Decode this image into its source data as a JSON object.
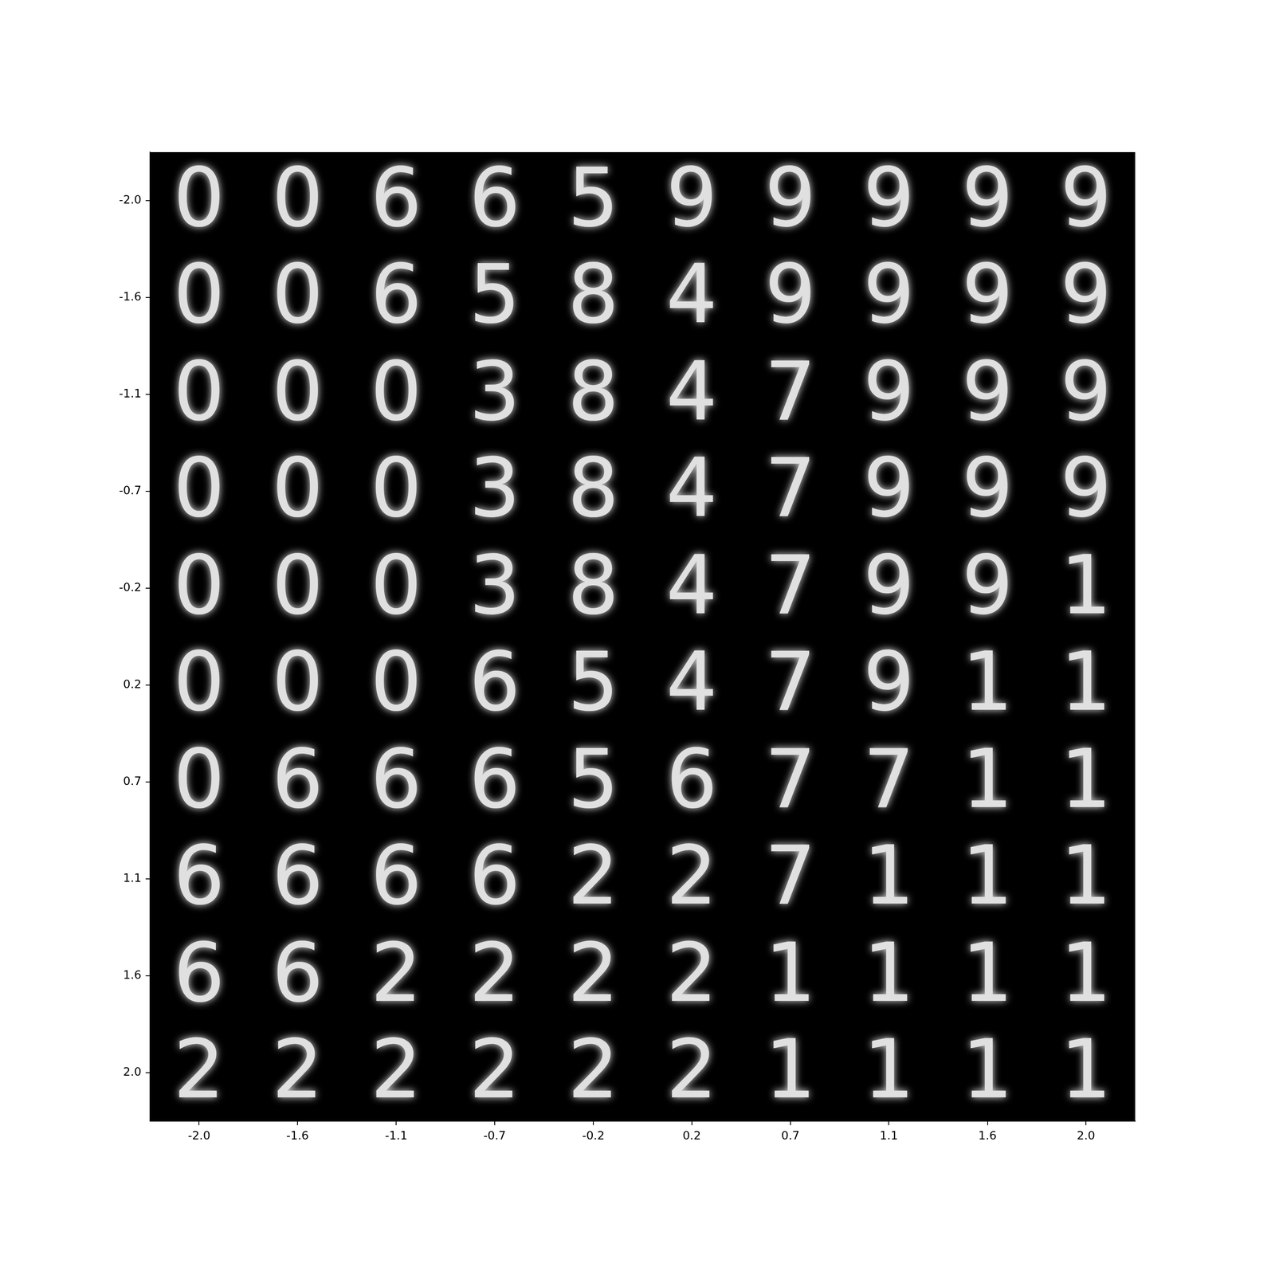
{
  "chart_data": {
    "type": "image_grid",
    "xlim": [
      -2.222,
      2.222
    ],
    "ylim": [
      2.222,
      -2.222
    ],
    "xticks": [
      {
        "value": -2,
        "label": "-2.0"
      },
      {
        "value": -1.556,
        "label": "-1.6"
      },
      {
        "value": -1.111,
        "label": "-1.1"
      },
      {
        "value": -0.667,
        "label": "-0.7"
      },
      {
        "value": -0.222,
        "label": "-0.2"
      },
      {
        "value": 0.222,
        "label": "0.2"
      },
      {
        "value": 0.667,
        "label": "0.7"
      },
      {
        "value": 1.111,
        "label": "1.1"
      },
      {
        "value": 1.556,
        "label": "1.6"
      },
      {
        "value": 2,
        "label": "2.0"
      }
    ],
    "yticks": [
      {
        "value": -2,
        "label": "-2.0"
      },
      {
        "value": -1.556,
        "label": "-1.6"
      },
      {
        "value": -1.111,
        "label": "-1.1"
      },
      {
        "value": -0.667,
        "label": "-0.7"
      },
      {
        "value": -0.222,
        "label": "-0.2"
      },
      {
        "value": 0.222,
        "label": "0.2"
      },
      {
        "value": 0.667,
        "label": "0.7"
      },
      {
        "value": 1.111,
        "label": "1.1"
      },
      {
        "value": 1.556,
        "label": "1.6"
      },
      {
        "value": 2,
        "label": "2.0"
      }
    ],
    "grid": false,
    "color": "#e0e0e0",
    "cells": [
      [
        "0",
        "0",
        "6",
        "6",
        "5",
        "9",
        "9",
        "9",
        "9",
        "9"
      ],
      [
        "0",
        "0",
        "6",
        "5",
        "8",
        "4",
        "9",
        "9",
        "9",
        "9"
      ],
      [
        "0",
        "0",
        "0",
        "3",
        "8",
        "4",
        "7",
        "9",
        "9",
        "9"
      ],
      [
        "0",
        "0",
        "0",
        "3",
        "8",
        "4",
        "7",
        "9",
        "9",
        "9"
      ],
      [
        "0",
        "0",
        "0",
        "3",
        "8",
        "4",
        "7",
        "9",
        "9",
        "1"
      ],
      [
        "0",
        "0",
        "0",
        "6",
        "5",
        "4",
        "7",
        "9",
        "1",
        "1"
      ],
      [
        "0",
        "6",
        "6",
        "6",
        "5",
        "6",
        "7",
        "7",
        "1",
        "1"
      ],
      [
        "6",
        "6",
        "6",
        "6",
        "2",
        "2",
        "7",
        "1",
        "1",
        "1"
      ],
      [
        "6",
        "6",
        "2",
        "2",
        "2",
        "2",
        "1",
        "1",
        "1",
        "1"
      ],
      [
        "2",
        "2",
        "2",
        "2",
        "2",
        "2",
        "1",
        "1",
        "1",
        "1"
      ]
    ]
  }
}
